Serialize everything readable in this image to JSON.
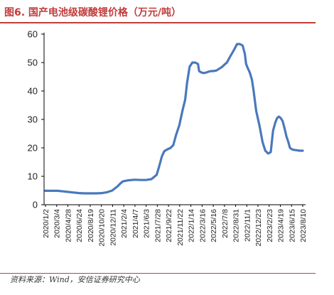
{
  "title": "图6. 国产电池级碳酸锂价格（万元/吨）",
  "source": "资料来源：Wind，安信证券研究中心",
  "colors": {
    "accent": "#c23b3b",
    "line": "#4a78bd",
    "axis": "#000000"
  },
  "chart_data": {
    "type": "line",
    "title": "",
    "xlabel": "",
    "ylabel": "",
    "ylim": [
      0,
      60
    ],
    "yticks": [
      0,
      10,
      20,
      30,
      40,
      50,
      60
    ],
    "grid": false,
    "legend": "none",
    "xtick_labels": [
      "2020/1/2",
      "2020/3/4",
      "2020/4/28",
      "2020/6/24",
      "2020/8/19",
      "2020/10/20",
      "2020/12/11",
      "2021/2/4",
      "2021/4/7",
      "2021/6/3",
      "2021/7/28",
      "2021/9/22",
      "2021/11/22",
      "2022/1/14",
      "2022/3/16",
      "2022/5/16",
      "2022/7/8",
      "2022/8/31",
      "2022/11/1",
      "2022/12/23",
      "2023/2/23",
      "2023/4/19",
      "2023/6/15",
      "2023/8/10"
    ],
    "series": [
      {
        "name": "",
        "x": [
          "2020/1/2",
          "2020/2/3",
          "2020/3/4",
          "2020/4/1",
          "2020/4/28",
          "2020/5/25",
          "2020/6/24",
          "2020/7/22",
          "2020/8/19",
          "2020/9/20",
          "2020/10/20",
          "2020/11/15",
          "2020/12/11",
          "2021/1/8",
          "2021/1/22",
          "2021/2/4",
          "2021/3/4",
          "2021/4/7",
          "2021/5/6",
          "2021/6/3",
          "2021/7/1",
          "2021/7/28",
          "2021/8/10",
          "2021/8/24",
          "2021/9/5",
          "2021/9/22",
          "2021/10/8",
          "2021/10/22",
          "2021/11/5",
          "2021/11/22",
          "2021/12/8",
          "2021/12/22",
          "2022/1/1",
          "2022/1/14",
          "2022/1/28",
          "2022/2/12",
          "2022/2/26",
          "2022/3/4",
          "2022/3/16",
          "2022/3/28",
          "2022/4/10",
          "2022/4/22",
          "2022/5/4",
          "2022/5/16",
          "2022/6/1",
          "2022/6/15",
          "2022/7/1",
          "2022/7/8",
          "2022/7/25",
          "2022/8/10",
          "2022/8/31",
          "2022/9/15",
          "2022/9/30",
          "2022/10/14",
          "2022/10/26",
          "2022/11/1",
          "2022/11/10",
          "2022/11/20",
          "2022/12/1",
          "2022/12/10",
          "2022/12/23",
          "2023/1/10",
          "2023/1/25",
          "2023/2/8",
          "2023/2/23",
          "2023/3/8",
          "2023/3/20",
          "2023/4/1",
          "2023/4/10",
          "2023/4/19",
          "2023/4/28",
          "2023/5/8",
          "2023/5/18",
          "2023/5/28",
          "2023/6/7",
          "2023/6/15",
          "2023/6/25",
          "2023/7/5",
          "2023/7/15",
          "2023/7/25",
          "2023/8/4",
          "2023/8/10",
          "2023/8/20"
        ],
        "values": [
          4.9,
          4.9,
          4.9,
          4.7,
          4.5,
          4.3,
          4.1,
          4.0,
          4.0,
          4.0,
          4.1,
          4.4,
          5.0,
          6.5,
          7.5,
          8.2,
          8.6,
          8.8,
          8.7,
          8.7,
          9.0,
          10.5,
          13.5,
          17.0,
          18.8,
          19.5,
          20.0,
          21.0,
          24.5,
          28.0,
          33.0,
          37.0,
          43.0,
          48.5,
          50.0,
          50.0,
          49.5,
          47.0,
          46.5,
          46.3,
          46.5,
          46.8,
          47.0,
          47.0,
          47.2,
          47.8,
          48.5,
          49.0,
          50.0,
          52.0,
          54.5,
          56.5,
          56.5,
          56.0,
          53.0,
          49.5,
          48.0,
          46.5,
          44.0,
          40.0,
          33.0,
          27.5,
          22.0,
          19.0,
          18.0,
          18.5,
          26.0,
          29.0,
          30.5,
          31.0,
          30.5,
          29.5,
          27.0,
          24.0,
          22.0,
          20.0,
          19.5,
          19.3,
          19.2,
          19.1,
          19.0,
          19.0,
          19.0
        ]
      }
    ]
  }
}
